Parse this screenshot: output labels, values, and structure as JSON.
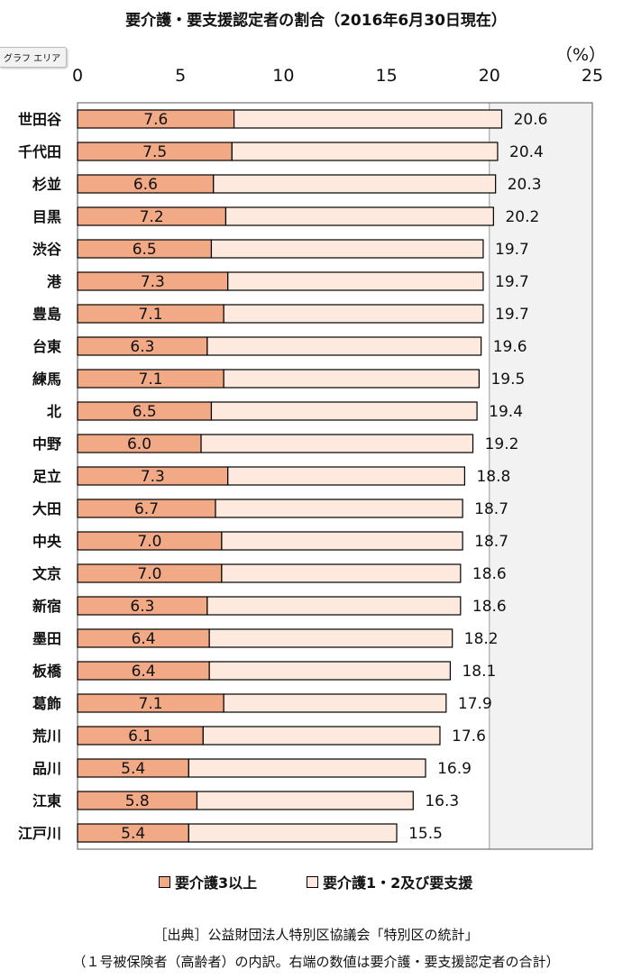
{
  "title": "要介護・要支援認定者の割合（2016年6月30日現在）",
  "tooltip": "グラフ エリア",
  "unit": "（%）",
  "colors": {
    "series1": "#f2a985",
    "series2": "#fde9dd",
    "plot_bg": "#f2f2f2",
    "border": "#000000"
  },
  "chart_data": {
    "type": "bar",
    "orientation": "horizontal",
    "stacked": true,
    "xlim": [
      0,
      25
    ],
    "ticks": [
      "0",
      "5",
      "10",
      "15",
      "20",
      "25"
    ],
    "categories": [
      "世田谷",
      "千代田",
      "杉並",
      "目黒",
      "渋谷",
      "港",
      "豊島",
      "台東",
      "練馬",
      "北",
      "中野",
      "足立",
      "大田",
      "中央",
      "文京",
      "新宿",
      "墨田",
      "板橋",
      "葛飾",
      "荒川",
      "品川",
      "江東",
      "江戸川"
    ],
    "series": [
      {
        "name": "要介護3以上",
        "values": [
          7.6,
          7.5,
          6.6,
          7.2,
          6.5,
          7.3,
          7.1,
          6.3,
          7.1,
          6.5,
          6.0,
          7.3,
          6.7,
          7.0,
          7.0,
          6.3,
          6.4,
          6.4,
          7.1,
          6.1,
          5.4,
          5.8,
          5.4
        ]
      },
      {
        "name": "要介護1・2及び要支援",
        "values": [
          13.0,
          12.9,
          13.7,
          13.0,
          13.2,
          12.4,
          12.6,
          13.3,
          12.4,
          12.9,
          13.2,
          11.5,
          12.0,
          11.7,
          11.6,
          12.3,
          11.8,
          11.7,
          10.8,
          11.5,
          11.5,
          10.5,
          10.1
        ]
      }
    ],
    "totals": [
      20.6,
      20.4,
      20.3,
      20.2,
      19.7,
      19.7,
      19.7,
      19.6,
      19.5,
      19.4,
      19.2,
      18.8,
      18.7,
      18.7,
      18.6,
      18.6,
      18.2,
      18.1,
      17.9,
      17.6,
      16.9,
      16.3,
      15.5
    ],
    "labels1": [
      "7.6",
      "7.5",
      "6.6",
      "7.2",
      "6.5",
      "7.3",
      "7.1",
      "6.3",
      "7.1",
      "6.5",
      "6.0",
      "7.3",
      "6.7",
      "7.0",
      "7.0",
      "6.3",
      "6.4",
      "6.4",
      "7.1",
      "6.1",
      "5.4",
      "5.8",
      "5.4"
    ],
    "total_labels": [
      "20.6",
      "20.4",
      "20.3",
      "20.2",
      "19.7",
      "19.7",
      "19.7",
      "19.6",
      "19.5",
      "19.4",
      "19.2",
      "18.8",
      "18.7",
      "18.7",
      "18.6",
      "18.6",
      "18.2",
      "18.1",
      "17.9",
      "17.6",
      "16.9",
      "16.3",
      "15.5"
    ],
    "grid": "vertical lines at 20 and 25",
    "legend_position": "bottom"
  },
  "legend": {
    "item1": "要介護3以上",
    "item2": "要介護1・2及び要支援"
  },
  "source": "［出典］公益財団法人特別区協議会「特別区の統計」",
  "note": "（１号被保険者（高齢者）の内訳。右端の数値は要介護・要支援認定者の合計）"
}
